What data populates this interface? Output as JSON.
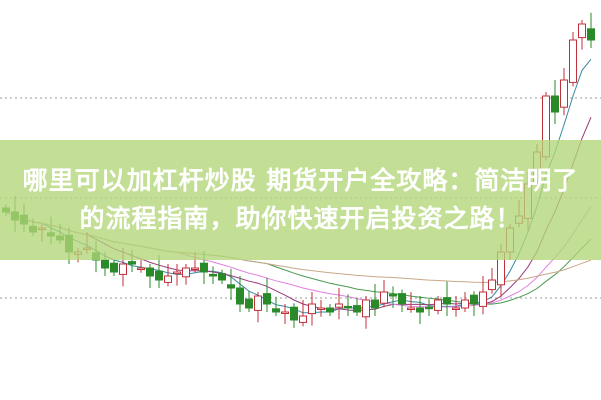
{
  "headline": {
    "line1": "哪里可以加杠杆炒股 期货开户全攻略：简洁明了",
    "line2": "的流程指南，助你快速开启投资之路！"
  },
  "colors": {
    "up": "#c0303a",
    "down": "#2a8a2a",
    "banner": "#b2d678",
    "ma5": "#3a8aa0",
    "ma10": "#9a3a7a",
    "ma20": "#e080e0",
    "ma30": "#4a9a50",
    "ma60": "#c8a888"
  },
  "chart_data": {
    "type": "candlestick",
    "ylim": [
      0,
      100
    ],
    "grid": "dotted horizontal",
    "closes": [
      47,
      45,
      44,
      42,
      43,
      41,
      40,
      37,
      37,
      38,
      35,
      33,
      32,
      34,
      34,
      33,
      31,
      30,
      31,
      32,
      33,
      33,
      32,
      31,
      30,
      28,
      24,
      23,
      26,
      24,
      22,
      22,
      20,
      21,
      24,
      23,
      22,
      24,
      23,
      22,
      25,
      23,
      27,
      26,
      24,
      23,
      22,
      23,
      25,
      24,
      23,
      25,
      24,
      27,
      30,
      37,
      43,
      46,
      54,
      62,
      76,
      72,
      80,
      90,
      94,
      90
    ],
    "moving_averages": [
      5,
      10,
      20,
      30,
      60
    ]
  }
}
